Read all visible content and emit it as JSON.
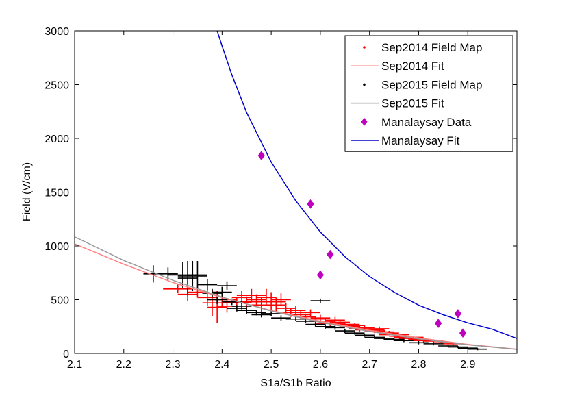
{
  "chart_data": {
    "type": "scatter",
    "title": "",
    "xlabel": "S1a/S1b Ratio",
    "ylabel": "Field (V/cm)",
    "xlim": [
      2.1,
      3.0
    ],
    "ylim": [
      0,
      3000
    ],
    "xticks": [
      2.1,
      2.2,
      2.3,
      2.4,
      2.5,
      2.6,
      2.7,
      2.8,
      2.9
    ],
    "yticks": [
      0,
      500,
      1000,
      1500,
      2000,
      2500,
      3000
    ],
    "xtick_labels": [
      "2.1",
      "2.2",
      "2.3",
      "2.4",
      "2.5",
      "2.6",
      "2.7",
      "2.8",
      "2.9"
    ],
    "ytick_labels": [
      "0",
      "500",
      "1000",
      "1500",
      "2000",
      "2500",
      "3000"
    ],
    "grid": false,
    "legend_position": "top-right",
    "series": [
      {
        "name": "Sep2014 Field Map",
        "kind": "errorbar-points",
        "color": "#ff0000",
        "points": [
          [
            2.31,
            600,
            0.03,
            40
          ],
          [
            2.33,
            550,
            0.02,
            60
          ],
          [
            2.35,
            570,
            0.02,
            50
          ],
          [
            2.37,
            520,
            0.02,
            80
          ],
          [
            2.38,
            470,
            0.02,
            120
          ],
          [
            2.39,
            430,
            0.02,
            150
          ],
          [
            2.4,
            500,
            0.03,
            70
          ],
          [
            2.41,
            440,
            0.02,
            60
          ],
          [
            2.43,
            470,
            0.03,
            50
          ],
          [
            2.44,
            520,
            0.02,
            60
          ],
          [
            2.45,
            480,
            0.02,
            50
          ],
          [
            2.46,
            540,
            0.03,
            60
          ],
          [
            2.47,
            500,
            0.02,
            50
          ],
          [
            2.48,
            450,
            0.02,
            70
          ],
          [
            2.49,
            520,
            0.02,
            80
          ],
          [
            2.5,
            480,
            0.03,
            90
          ],
          [
            2.51,
            450,
            0.02,
            70
          ],
          [
            2.52,
            500,
            0.02,
            60
          ],
          [
            2.53,
            420,
            0.02,
            50
          ],
          [
            2.54,
            380,
            0.02,
            40
          ],
          [
            2.55,
            400,
            0.02,
            40
          ],
          [
            2.56,
            360,
            0.02,
            40
          ],
          [
            2.57,
            340,
            0.02,
            30
          ],
          [
            2.58,
            380,
            0.02,
            30
          ],
          [
            2.59,
            320,
            0.02,
            30
          ],
          [
            2.6,
            330,
            0.02,
            30
          ],
          [
            2.61,
            300,
            0.02,
            30
          ],
          [
            2.62,
            280,
            0.03,
            30
          ],
          [
            2.63,
            310,
            0.02,
            30
          ],
          [
            2.64,
            290,
            0.02,
            25
          ],
          [
            2.65,
            270,
            0.03,
            25
          ],
          [
            2.66,
            250,
            0.02,
            25
          ],
          [
            2.67,
            260,
            0.02,
            25
          ],
          [
            2.68,
            230,
            0.02,
            25
          ],
          [
            2.69,
            240,
            0.02,
            20
          ],
          [
            2.7,
            220,
            0.03,
            20
          ],
          [
            2.71,
            210,
            0.02,
            20
          ],
          [
            2.72,
            230,
            0.02,
            20
          ],
          [
            2.73,
            200,
            0.02,
            20
          ],
          [
            2.74,
            190,
            0.02,
            20
          ],
          [
            2.75,
            175,
            0.03,
            20
          ],
          [
            2.76,
            160,
            0.02,
            20
          ],
          [
            2.77,
            150,
            0.02,
            20
          ],
          [
            2.78,
            140,
            0.02,
            15
          ],
          [
            2.79,
            150,
            0.02,
            15
          ],
          [
            2.8,
            130,
            0.02,
            15
          ],
          [
            2.81,
            120,
            0.02,
            15
          ],
          [
            2.83,
            115,
            0.02,
            15
          ],
          [
            2.85,
            100,
            0.02,
            15
          ],
          [
            2.87,
            90,
            0.02,
            15
          ]
        ]
      },
      {
        "name": "Sep2014 Fit",
        "kind": "line",
        "color": "#ff8080",
        "x": [
          2.1,
          2.2,
          2.3,
          2.4,
          2.5,
          2.6,
          2.7,
          2.8,
          2.9,
          3.0
        ],
        "y": [
          1020,
          830,
          660,
          520,
          400,
          300,
          215,
          145,
          85,
          40
        ]
      },
      {
        "name": "Sep2015 Field Map",
        "kind": "errorbar-points",
        "color": "#000000",
        "points": [
          [
            2.26,
            740,
            0.02,
            80
          ],
          [
            2.29,
            740,
            0.02,
            60
          ],
          [
            2.32,
            730,
            0.03,
            120
          ],
          [
            2.33,
            700,
            0.02,
            160
          ],
          [
            2.34,
            720,
            0.03,
            140
          ],
          [
            2.35,
            730,
            0.02,
            130
          ],
          [
            2.37,
            640,
            0.02,
            50
          ],
          [
            2.38,
            560,
            0.02,
            40
          ],
          [
            2.39,
            500,
            0.02,
            40
          ],
          [
            2.4,
            570,
            0.02,
            50
          ],
          [
            2.41,
            630,
            0.02,
            40
          ],
          [
            2.42,
            480,
            0.02,
            30
          ],
          [
            2.43,
            420,
            0.02,
            30
          ],
          [
            2.44,
            440,
            0.02,
            30
          ],
          [
            2.45,
            400,
            0.02,
            30
          ],
          [
            2.47,
            380,
            0.02,
            25
          ],
          [
            2.48,
            360,
            0.02,
            25
          ],
          [
            2.5,
            370,
            0.02,
            25
          ],
          [
            2.52,
            330,
            0.02,
            25
          ],
          [
            2.55,
            320,
            0.02,
            20
          ],
          [
            2.57,
            300,
            0.02,
            20
          ],
          [
            2.59,
            270,
            0.02,
            20
          ],
          [
            2.6,
            490,
            0.02,
            20
          ],
          [
            2.61,
            250,
            0.02,
            20
          ],
          [
            2.63,
            240,
            0.02,
            20
          ],
          [
            2.65,
            210,
            0.02,
            20
          ],
          [
            2.67,
            190,
            0.02,
            15
          ],
          [
            2.69,
            170,
            0.02,
            15
          ],
          [
            2.71,
            150,
            0.02,
            15
          ],
          [
            2.73,
            140,
            0.02,
            15
          ],
          [
            2.75,
            130,
            0.02,
            15
          ],
          [
            2.77,
            120,
            0.02,
            15
          ],
          [
            2.8,
            100,
            0.02,
            15
          ],
          [
            2.83,
            90,
            0.02,
            15
          ],
          [
            2.86,
            70,
            0.02,
            10
          ],
          [
            2.88,
            60,
            0.02,
            10
          ],
          [
            2.9,
            50,
            0.02,
            10
          ],
          [
            2.92,
            40,
            0.02,
            10
          ]
        ]
      },
      {
        "name": "Sep2015 Fit",
        "kind": "line",
        "color": "#999999",
        "x": [
          2.1,
          2.2,
          2.3,
          2.4,
          2.5,
          2.6,
          2.7,
          2.8,
          2.9,
          3.0
        ],
        "y": [
          1085,
          865,
          680,
          525,
          395,
          290,
          205,
          135,
          80,
          38
        ]
      },
      {
        "name": "Manalaysay Data",
        "kind": "points",
        "color": "#bf00bf",
        "x": [
          2.48,
          2.58,
          2.6,
          2.62,
          2.84,
          2.88,
          2.89
        ],
        "y": [
          1840,
          1390,
          730,
          920,
          280,
          370,
          190
        ]
      },
      {
        "name": "Manalaysay Fit",
        "kind": "line",
        "color": "#0000cc",
        "x": [
          2.39,
          2.4,
          2.42,
          2.45,
          2.5,
          2.55,
          2.6,
          2.65,
          2.7,
          2.75,
          2.8,
          2.85,
          2.9,
          2.95,
          3.0
        ],
        "y": [
          3000,
          2860,
          2590,
          2240,
          1780,
          1420,
          1130,
          900,
          715,
          570,
          450,
          360,
          285,
          225,
          140
        ]
      }
    ]
  }
}
